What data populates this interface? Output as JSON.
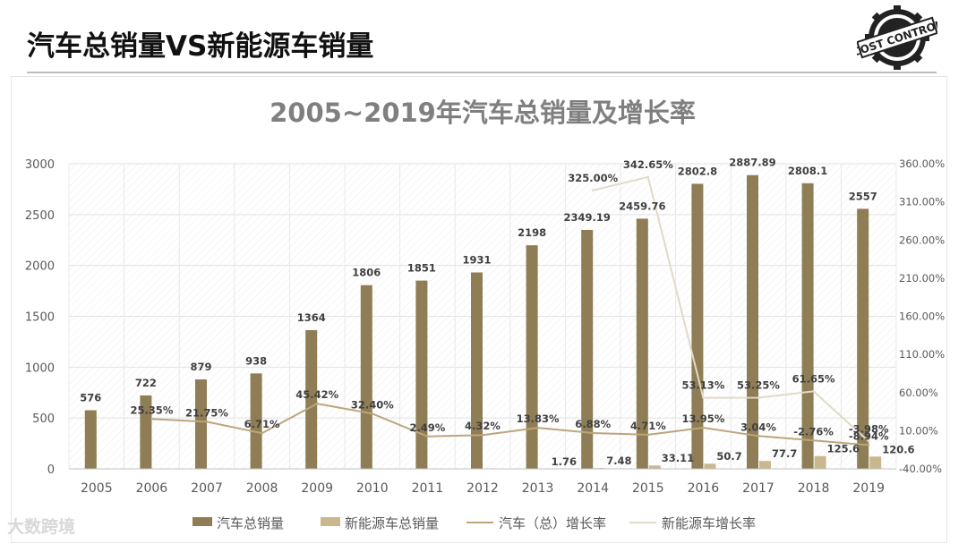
{
  "slide_title": "汽车总销量VS新能源车销量",
  "logo_text": "COST CONTROL",
  "watermark": "大数跨境",
  "colors": {
    "total_bar": "#8e7d55",
    "nev_bar": "#c9b78e",
    "total_growth_line": "#bba67c",
    "nev_growth_line": "#e2dac8",
    "title_gray": "#7f7f7f"
  },
  "chart_data": {
    "type": "bar",
    "title": "2005~2019年汽车总销量及增长率",
    "categories": [
      "2005",
      "2006",
      "2007",
      "2008",
      "2009",
      "2010",
      "2011",
      "2012",
      "2013",
      "2014",
      "2015",
      "2016",
      "2017",
      "2018",
      "2019"
    ],
    "ylim": [
      0,
      3000
    ],
    "y_ticks": [
      0,
      500,
      1000,
      1500,
      2000,
      2500,
      3000
    ],
    "y2lim": [
      -40,
      360
    ],
    "y2_ticks": [
      "-40.00%",
      "10.00%",
      "60.00%",
      "110.00%",
      "160.00%",
      "210.00%",
      "260.00%",
      "310.00%",
      "360.00%"
    ],
    "y2_tick_values": [
      -40,
      10,
      60,
      110,
      160,
      210,
      260,
      310,
      360
    ],
    "series": [
      {
        "name": "汽车总销量",
        "type": "bar",
        "values": [
          576,
          722,
          879,
          938,
          1364,
          1806,
          1851,
          1931,
          2198,
          2349.19,
          2459.76,
          2802.8,
          2887.89,
          2808.1,
          2557
        ],
        "labels": [
          "576",
          "722",
          "879",
          "938",
          "1364",
          "1806",
          "1851",
          "1931",
          "2198",
          "2349.19",
          "2459.76",
          "2802.8",
          "2887.89",
          "2808.1",
          "2557"
        ]
      },
      {
        "name": "新能源车总销量",
        "type": "bar",
        "values": [
          null,
          null,
          null,
          null,
          null,
          null,
          null,
          null,
          1.76,
          7.48,
          33.11,
          50.7,
          77.7,
          125.6,
          120.6
        ],
        "labels": [
          "",
          "",
          "",
          "",
          "",
          "",
          "",
          "",
          "1.76",
          "7.48",
          "33.11",
          "50.7",
          "77.7",
          "125.6",
          "120.6"
        ]
      },
      {
        "name": "汽车（总）增长率",
        "type": "line",
        "axis": "right",
        "values": [
          null,
          25.35,
          21.75,
          6.71,
          45.42,
          32.4,
          2.49,
          4.32,
          13.83,
          6.88,
          4.71,
          13.95,
          3.04,
          -2.76,
          -8.94
        ],
        "labels": [
          "",
          "25.35%",
          "21.75%",
          "6.71%",
          "45.42%",
          "32.40%",
          "2.49%",
          "4.32%",
          "13.83%",
          "6.88%",
          "4.71%",
          "13.95%",
          "3.04%",
          "-2.76%",
          "-8.94%"
        ]
      },
      {
        "name": "新能源车增长率",
        "type": "line",
        "axis": "right",
        "values": [
          null,
          null,
          null,
          null,
          null,
          null,
          null,
          null,
          null,
          325.0,
          342.65,
          53.13,
          53.25,
          61.65,
          -3.98
        ],
        "labels": [
          "",
          "",
          "",
          "",
          "",
          "",
          "",
          "",
          "",
          "325.00%",
          "342.65%",
          "53.13%",
          "53.25%",
          "61.65%",
          "-3.98%"
        ]
      }
    ],
    "legend_position": "bottom"
  }
}
